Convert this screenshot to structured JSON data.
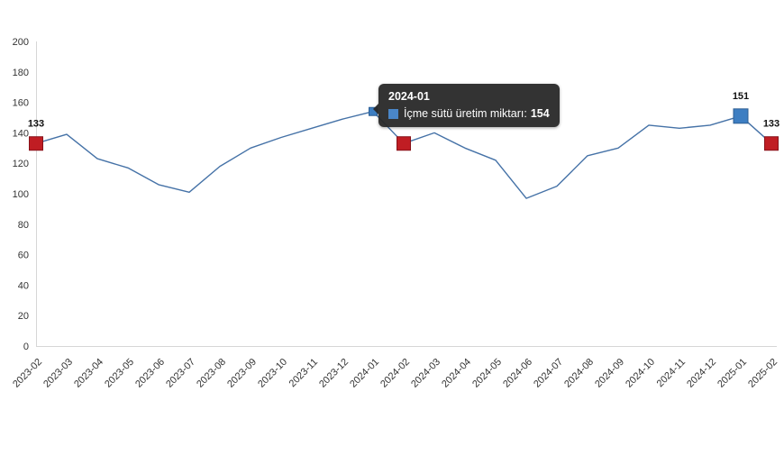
{
  "chart_data": {
    "type": "line",
    "title": "",
    "xlabel": "",
    "ylabel": "",
    "categories": [
      "2023-02",
      "2023-03",
      "2023-04",
      "2023-05",
      "2023-06",
      "2023-07",
      "2023-08",
      "2023-09",
      "2023-10",
      "2023-11",
      "2023-12",
      "2024-01",
      "2024-02",
      "2024-03",
      "2024-04",
      "2024-05",
      "2024-06",
      "2024-07",
      "2024-08",
      "2024-09",
      "2024-10",
      "2024-11",
      "2024-12",
      "2025-01",
      "2025-02"
    ],
    "series": [
      {
        "name": "İçme sütü üretim miktarı",
        "color": "#4572a7",
        "values": [
          133,
          139,
          123,
          117,
          106,
          101,
          118,
          130,
          137,
          143,
          149,
          154,
          133,
          140,
          130,
          122,
          97,
          105,
          125,
          130,
          145,
          143,
          145,
          151,
          133
        ]
      }
    ],
    "ylim": [
      0,
      200
    ],
    "y_tick_step": 20,
    "grid": false,
    "legend_position": "none",
    "x_label_rotation": -45,
    "axis_color": "#d6d6d6",
    "markers": [
      {
        "index": 0,
        "shape": "square",
        "fill": "#c01d23",
        "border": "#87121a",
        "size": 15,
        "label": "133"
      },
      {
        "index": 11,
        "shape": "square",
        "fill": "#3d7ec2",
        "border": "#2d5f94",
        "size": 9,
        "label": ""
      },
      {
        "index": 12,
        "shape": "square",
        "fill": "#c01d23",
        "border": "#87121a",
        "size": 15,
        "label": ""
      },
      {
        "index": 23,
        "shape": "square",
        "fill": "#3d7ec2",
        "border": "#2d5f94",
        "size": 16,
        "label": "151"
      },
      {
        "index": 24,
        "shape": "square",
        "fill": "#c01d23",
        "border": "#87121a",
        "size": 15,
        "label": "133"
      }
    ],
    "tooltip": {
      "point_index": 11,
      "title": "2024-01",
      "series_label": "İçme sütü üretim miktarı:",
      "value": "154",
      "swatch_color": "#4a86c8"
    }
  }
}
